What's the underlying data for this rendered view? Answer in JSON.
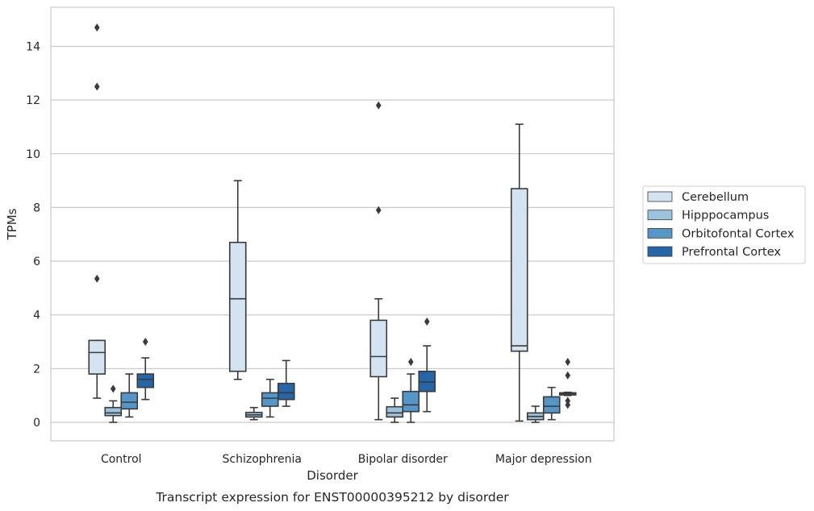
{
  "caption": "Transcript expression for ENST00000395212 by disorder",
  "chart_data": {
    "type": "boxplot",
    "xlabel": "Disorder",
    "ylabel": "TPMs",
    "ylim": [
      -0.7,
      15.4
    ],
    "yticks": [
      0,
      2,
      4,
      6,
      8,
      10,
      12,
      14
    ],
    "grid": "horizontal",
    "legend_position": "right",
    "categories": [
      "Control",
      "Schizophrenia",
      "Bipolar disorder",
      "Major depression"
    ],
    "series": [
      {
        "name": "Cerebellum",
        "color": "#d4e3f1",
        "boxes": [
          {
            "min": 0.9,
            "q1": 1.8,
            "median": 2.6,
            "q3": 3.05,
            "max": 3.05,
            "outliers": [
              5.35,
              12.5,
              14.7
            ]
          },
          {
            "min": 1.6,
            "q1": 1.9,
            "median": 4.6,
            "q3": 6.7,
            "max": 9.0,
            "outliers": []
          },
          {
            "min": 0.1,
            "q1": 1.7,
            "median": 2.45,
            "q3": 3.8,
            "max": 4.6,
            "outliers": [
              7.9,
              11.8
            ]
          },
          {
            "min": 0.05,
            "q1": 2.65,
            "median": 2.85,
            "q3": 8.7,
            "max": 11.1,
            "outliers": []
          }
        ]
      },
      {
        "name": "Hipppocampus",
        "color": "#9cc3de",
        "boxes": [
          {
            "min": 0.0,
            "q1": 0.25,
            "median": 0.35,
            "q3": 0.55,
            "max": 0.8,
            "outliers": [
              1.25
            ]
          },
          {
            "min": 0.1,
            "q1": 0.2,
            "median": 0.28,
            "q3": 0.37,
            "max": 0.55,
            "outliers": []
          },
          {
            "min": 0.0,
            "q1": 0.2,
            "median": 0.35,
            "q3": 0.58,
            "max": 0.9,
            "outliers": []
          },
          {
            "min": 0.0,
            "q1": 0.1,
            "median": 0.22,
            "q3": 0.35,
            "max": 0.6,
            "outliers": []
          }
        ]
      },
      {
        "name": "Orbitofontal Cortex",
        "color": "#5596c8",
        "boxes": [
          {
            "min": 0.2,
            "q1": 0.5,
            "median": 0.75,
            "q3": 1.1,
            "max": 1.8,
            "outliers": []
          },
          {
            "min": 0.2,
            "q1": 0.6,
            "median": 0.9,
            "q3": 1.1,
            "max": 1.6,
            "outliers": []
          },
          {
            "min": 0.0,
            "q1": 0.4,
            "median": 0.65,
            "q3": 1.15,
            "max": 1.8,
            "outliers": [
              2.25
            ]
          },
          {
            "min": 0.1,
            "q1": 0.35,
            "median": 0.6,
            "q3": 0.95,
            "max": 1.3,
            "outliers": []
          }
        ]
      },
      {
        "name": "Prefrontal Cortex",
        "color": "#2566a8",
        "boxes": [
          {
            "min": 0.85,
            "q1": 1.3,
            "median": 1.6,
            "q3": 1.8,
            "max": 2.4,
            "outliers": [
              3.0
            ]
          },
          {
            "min": 0.6,
            "q1": 0.85,
            "median": 1.1,
            "q3": 1.45,
            "max": 2.3,
            "outliers": []
          },
          {
            "min": 0.4,
            "q1": 1.15,
            "median": 1.5,
            "q3": 1.9,
            "max": 2.85,
            "outliers": [
              3.75
            ]
          },
          {
            "min": 1.0,
            "q1": 1.02,
            "median": 1.07,
            "q3": 1.1,
            "max": 1.12,
            "outliers": [
              0.65,
              0.8,
              1.75,
              2.25
            ]
          }
        ]
      }
    ]
  }
}
